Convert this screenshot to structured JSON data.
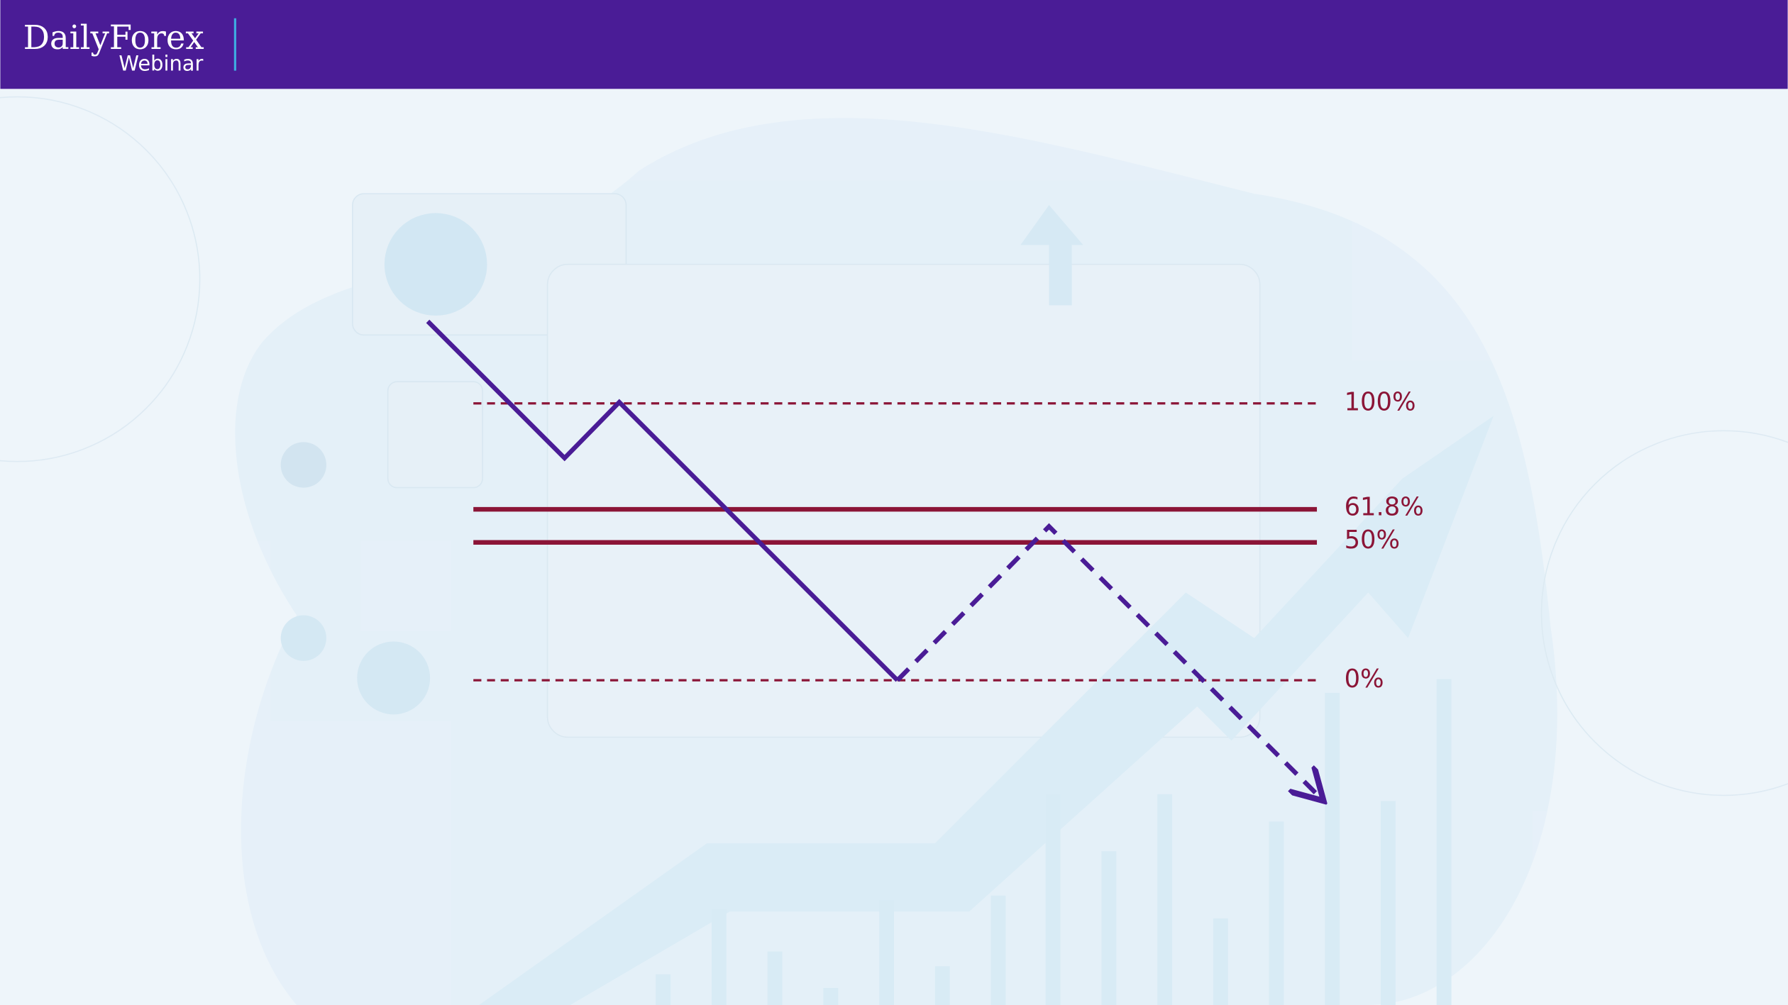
{
  "header": {
    "brand": "DailyForex",
    "subtitle": "Webinar"
  },
  "levels": [
    {
      "label": "100%"
    },
    {
      "label": "61.8%"
    },
    {
      "label": "50%"
    },
    {
      "label": "0%"
    }
  ]
}
